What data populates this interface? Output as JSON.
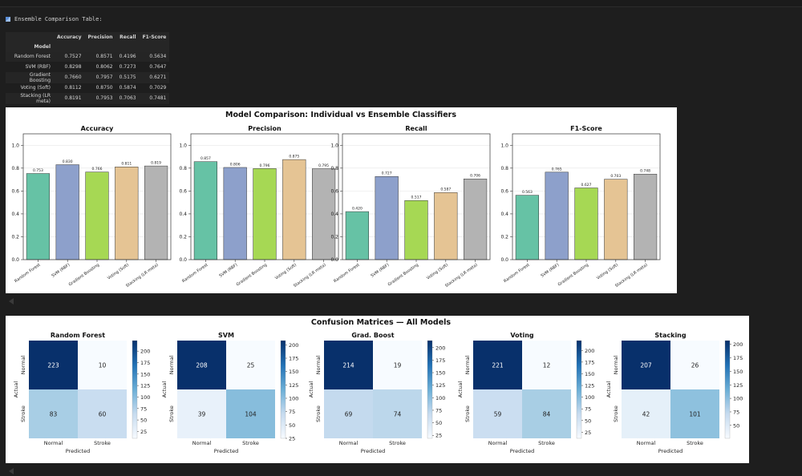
{
  "cell_title": "Ensemble Comparison Table:",
  "table": {
    "columns": [
      "Accuracy",
      "Precision",
      "Recall",
      "F1-Score"
    ],
    "index_name": "Model",
    "rows": [
      {
        "model": "Random Forest",
        "values": [
          "0.7527",
          "0.8571",
          "0.4196",
          "0.5634"
        ]
      },
      {
        "model": "SVM (RBF)",
        "values": [
          "0.8298",
          "0.8062",
          "0.7273",
          "0.7647"
        ]
      },
      {
        "model": "Gradient Boosting",
        "values": [
          "0.7660",
          "0.7957",
          "0.5175",
          "0.6271"
        ]
      },
      {
        "model": "Voting (Soft)",
        "values": [
          "0.8112",
          "0.8750",
          "0.5874",
          "0.7029"
        ]
      },
      {
        "model": "Stacking (LR meta)",
        "values": [
          "0.8191",
          "0.7953",
          "0.7063",
          "0.7481"
        ]
      }
    ]
  },
  "chart_data": [
    {
      "type": "bar",
      "title": "Model Comparison: Individual vs Ensemble Classifiers",
      "categories": [
        "Random Forest",
        "SVM (RBF)",
        "Gradient Boosting",
        "Voting (Soft)",
        "Stacking (LR meta)"
      ],
      "colors": [
        "#66c2a5",
        "#8da0cb",
        "#a6d854",
        "#e5c494",
        "#b3b3b3"
      ],
      "ylim": [
        0,
        1.1
      ],
      "yticks": [
        "0.0",
        "0.2",
        "0.4",
        "0.6",
        "0.8",
        "1.0"
      ],
      "grid": "horizontal",
      "subplots": [
        {
          "title": "Accuracy",
          "values": [
            0.753,
            0.83,
            0.766,
            0.811,
            0.819
          ],
          "labels": [
            "0.753",
            "0.830",
            "0.766",
            "0.811",
            "0.819"
          ]
        },
        {
          "title": "Precision",
          "values": [
            0.857,
            0.806,
            0.796,
            0.875,
            0.795
          ],
          "labels": [
            "0.857",
            "0.806",
            "0.796",
            "0.875",
            "0.795"
          ]
        },
        {
          "title": "Recall",
          "values": [
            0.42,
            0.727,
            0.517,
            0.587,
            0.706
          ],
          "labels": [
            "0.420",
            "0.727",
            "0.517",
            "0.587",
            "0.706"
          ]
        },
        {
          "title": "F1-Score",
          "values": [
            0.563,
            0.765,
            0.627,
            0.703,
            0.748
          ],
          "labels": [
            "0.563",
            "0.765",
            "0.627",
            "0.703",
            "0.748"
          ]
        }
      ]
    },
    {
      "type": "heatmap",
      "title": "Confusion Matrices — All Models",
      "xlabel": "Predicted",
      "ylabel": "Actual",
      "x_categories": [
        "Normal",
        "Stroke"
      ],
      "y_categories": [
        "Normal",
        "Stroke"
      ],
      "colormap": "Blues",
      "matrices": [
        {
          "title": "Random Forest",
          "values": [
            [
              223,
              10
            ],
            [
              83,
              60
            ]
          ],
          "colorbar_ticks": [
            25,
            50,
            75,
            100,
            125,
            150,
            175,
            200
          ]
        },
        {
          "title": "SVM",
          "values": [
            [
              208,
              25
            ],
            [
              39,
              104
            ]
          ],
          "colorbar_ticks": [
            25,
            50,
            75,
            100,
            125,
            150,
            175,
            200
          ]
        },
        {
          "title": "Grad. Boost",
          "values": [
            [
              214,
              19
            ],
            [
              69,
              74
            ]
          ],
          "colorbar_ticks": [
            25,
            50,
            75,
            100,
            125,
            150,
            175,
            200
          ]
        },
        {
          "title": "Voting",
          "values": [
            [
              221,
              12
            ],
            [
              59,
              84
            ]
          ],
          "colorbar_ticks": [
            25,
            50,
            75,
            100,
            125,
            150,
            175,
            200
          ]
        },
        {
          "title": "Stacking",
          "values": [
            [
              207,
              26
            ],
            [
              42,
              101
            ]
          ],
          "colorbar_ticks": [
            50,
            75,
            100,
            125,
            150,
            175,
            200
          ]
        }
      ]
    }
  ]
}
